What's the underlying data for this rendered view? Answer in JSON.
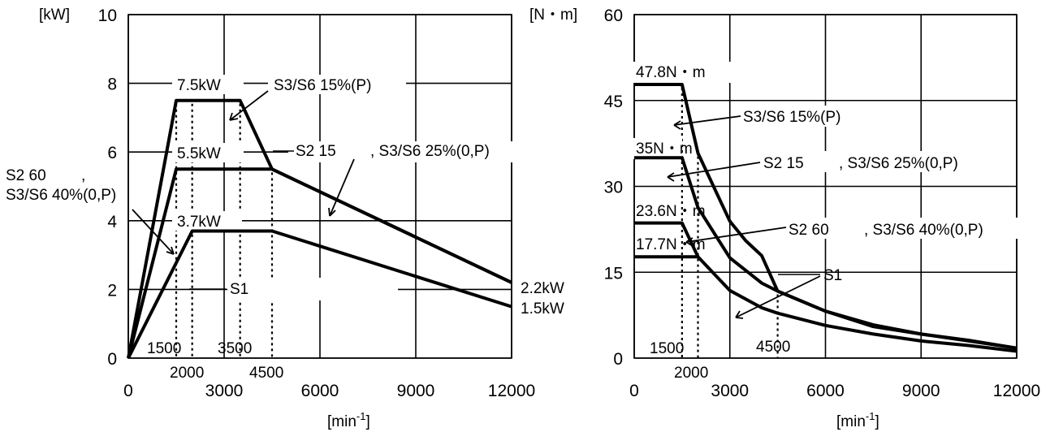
{
  "chart_data": [
    {
      "type": "line",
      "ylabel": "[kW]",
      "xlabel": "[min⁻¹]",
      "xlabel_base": "[min",
      "xlabel_sup": "-1",
      "xlabel_close": "]",
      "xlim": [
        0,
        12000
      ],
      "ylim": [
        0,
        10
      ],
      "x_ticks": [
        "0",
        "3000",
        "6000",
        "9000",
        "12000"
      ],
      "y_ticks": [
        "0",
        "2",
        "4",
        "6",
        "8",
        "10"
      ],
      "series": [
        {
          "name": "S3/S6 15%(P)",
          "x": [
            0,
            1500,
            3500,
            4500,
            12000
          ],
          "y": [
            0,
            7.5,
            7.5,
            5.5,
            2.2
          ]
        },
        {
          "name": "S2 15 , S3/S6 25%(0,P)",
          "x": [
            0,
            1500,
            4500,
            12000
          ],
          "y": [
            0,
            5.5,
            5.5,
            2.2
          ]
        },
        {
          "name": "S1",
          "x": [
            0,
            2000,
            4500,
            12000
          ],
          "y": [
            0,
            3.7,
            3.7,
            1.5
          ]
        }
      ],
      "annotations": {
        "p75": "7.5kW",
        "p55": "5.5kW",
        "p37": "3.7kW",
        "s36_15": "S3/S6 15%(P)",
        "s2_15": "S2 15",
        "s36_25": ", S3/S6 25%(0,P)",
        "s2_60": "S2 60",
        "s2_60_comma": ",",
        "s36_40": "S3/S6 40%(0,P)",
        "s1": "S1",
        "p22": "2.2kW",
        "p15": "1.5kW",
        "x1500": "1500",
        "x2000": "2000",
        "x3500": "3500",
        "x4500": "4500"
      }
    },
    {
      "type": "line",
      "ylabel": "[N・m]",
      "xlabel": "[min⁻¹]",
      "xlabel_base": "[min",
      "xlabel_sup": "-1",
      "xlabel_close": "]",
      "xlim": [
        0,
        12000
      ],
      "ylim": [
        0,
        60
      ],
      "x_ticks": [
        "0",
        "3000",
        "6000",
        "9000",
        "12000"
      ],
      "y_ticks": [
        "0",
        "15",
        "30",
        "45",
        "60"
      ],
      "series": [
        {
          "name": "S3/S6 15%(P)",
          "x": [
            0,
            1500,
            2000,
            3000,
            3500,
            4000,
            4500,
            6000,
            7500,
            9000,
            10500,
            12000
          ],
          "y": [
            47.8,
            47.8,
            35.8,
            23.9,
            20.5,
            17.9,
            11.7,
            8.2,
            5.5,
            4.2,
            3.1,
            1.75
          ]
        },
        {
          "name": "S2 15 , S3/S6 25%(0,P)",
          "x": [
            0,
            1500,
            2000,
            3000,
            4000,
            4500,
            6000,
            7500,
            9000,
            10500,
            12000
          ],
          "y": [
            35,
            35,
            26.3,
            17.5,
            13.1,
            11.7,
            8.2,
            5.8,
            4.2,
            3.0,
            1.75
          ]
        },
        {
          "name": "S1",
          "x": [
            0,
            1500,
            2000,
            3000,
            4000,
            4500,
            6000,
            7500,
            9000,
            10500,
            12000
          ],
          "y": [
            17.7,
            17.7,
            17.7,
            11.8,
            8.8,
            7.85,
            5.7,
            4.2,
            3.0,
            2.2,
            1.2
          ]
        },
        {
          "name": "S2 60 , S3/S6 40%(0,P)",
          "x": [
            0,
            1500,
            2000
          ],
          "y": [
            23.6,
            23.6,
            17.7
          ]
        }
      ],
      "annotations": {
        "t478": "47.8N・m",
        "t35": "35N・m",
        "t236": "23.6N・m",
        "t177": "17.7N・m",
        "s36_15": "S3/S6 15%(P)",
        "s2_15": "S2 15",
        "s36_25": ", S3/S6 25%(0,P)",
        "s2_60": "S2 60",
        "s36_40": ", S3/S6 40%(0,P)",
        "s1": "S1",
        "x1500": "1500",
        "x2000": "2000",
        "x4500": "4500"
      }
    }
  ]
}
